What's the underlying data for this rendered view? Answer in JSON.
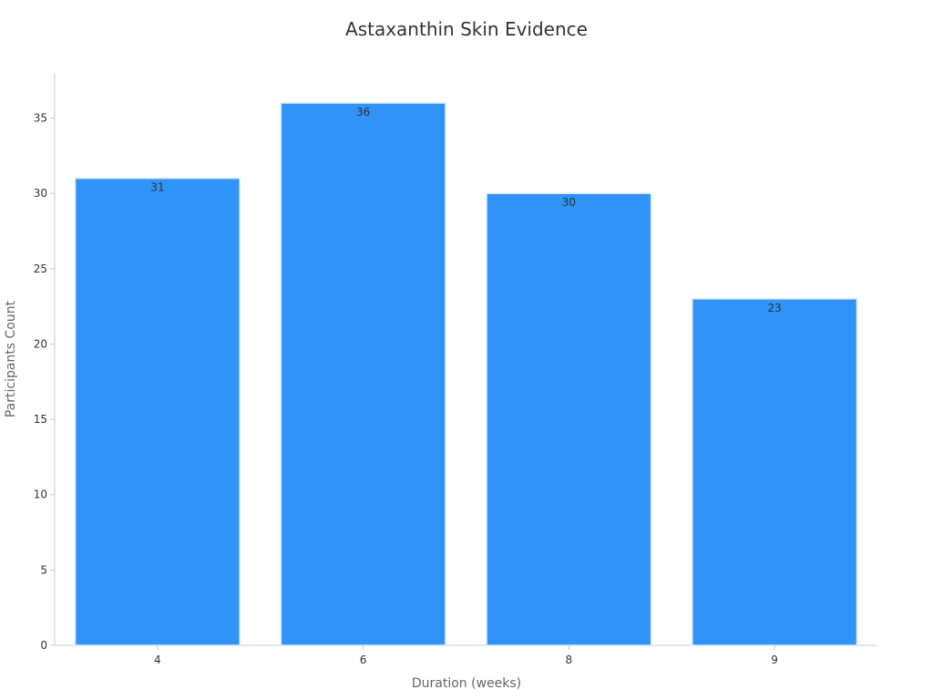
{
  "chart_data": {
    "type": "bar",
    "title": "Astaxanthin Skin Evidence",
    "xlabel": "Duration (weeks)",
    "ylabel": "Participants Count",
    "categories": [
      "4",
      "6",
      "8",
      "9"
    ],
    "values": [
      31,
      36,
      30,
      23
    ],
    "ylim": [
      0,
      38
    ],
    "yticks": [
      0,
      5,
      10,
      15,
      20,
      25,
      30,
      35
    ],
    "bar_color": "#2f93f8",
    "grid": false,
    "data_labels": true
  }
}
